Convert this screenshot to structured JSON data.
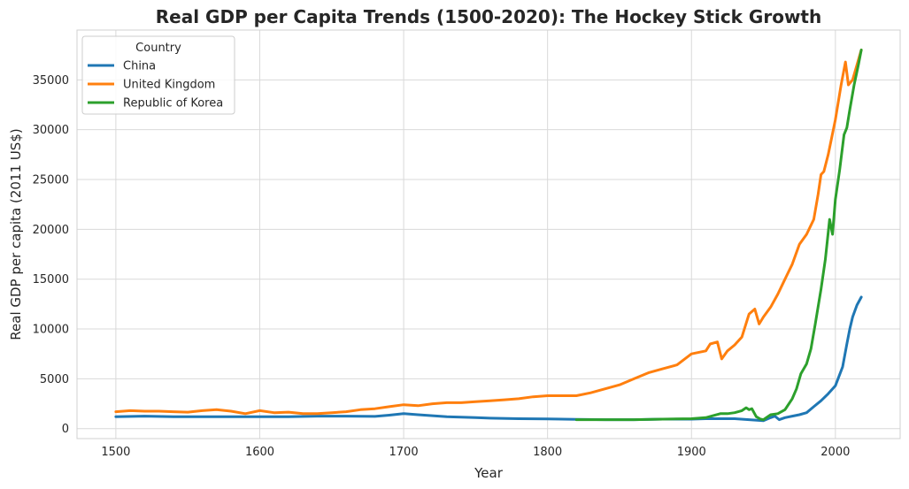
{
  "chart_data": {
    "type": "line",
    "title": "Real GDP per Capita Trends (1500-2020): The Hockey Stick Growth",
    "xlabel": "Year",
    "ylabel": "Real GDP per capita (2011 US$)",
    "xlim": [
      1473,
      2045
    ],
    "ylim": [
      -1000,
      40000
    ],
    "xticks": [
      1500,
      1600,
      1700,
      1800,
      1900,
      2000
    ],
    "yticks": [
      0,
      5000,
      10000,
      15000,
      20000,
      25000,
      30000,
      35000
    ],
    "grid": true,
    "legend": {
      "title": "Country",
      "placement": "top-left"
    },
    "series": [
      {
        "name": "China",
        "color": "#1f77b4",
        "points": [
          [
            1500,
            1200
          ],
          [
            1520,
            1250
          ],
          [
            1540,
            1200
          ],
          [
            1560,
            1200
          ],
          [
            1580,
            1200
          ],
          [
            1600,
            1200
          ],
          [
            1620,
            1200
          ],
          [
            1640,
            1250
          ],
          [
            1660,
            1250
          ],
          [
            1680,
            1230
          ],
          [
            1690,
            1350
          ],
          [
            1700,
            1500
          ],
          [
            1710,
            1400
          ],
          [
            1720,
            1300
          ],
          [
            1730,
            1200
          ],
          [
            1740,
            1150
          ],
          [
            1750,
            1100
          ],
          [
            1760,
            1050
          ],
          [
            1780,
            1000
          ],
          [
            1800,
            980
          ],
          [
            1820,
            930
          ],
          [
            1840,
            900
          ],
          [
            1860,
            900
          ],
          [
            1880,
            950
          ],
          [
            1900,
            950
          ],
          [
            1910,
            1000
          ],
          [
            1920,
            1000
          ],
          [
            1930,
            1000
          ],
          [
            1940,
            900
          ],
          [
            1950,
            800
          ],
          [
            1955,
            1100
          ],
          [
            1958,
            1250
          ],
          [
            1961,
            900
          ],
          [
            1965,
            1100
          ],
          [
            1970,
            1250
          ],
          [
            1975,
            1400
          ],
          [
            1980,
            1600
          ],
          [
            1985,
            2200
          ],
          [
            1990,
            2800
          ],
          [
            1995,
            3500
          ],
          [
            2000,
            4300
          ],
          [
            2005,
            6200
          ],
          [
            2008,
            8500
          ],
          [
            2010,
            10000
          ],
          [
            2012,
            11200
          ],
          [
            2015,
            12400
          ],
          [
            2018,
            13200
          ]
        ]
      },
      {
        "name": "United Kingdom",
        "color": "#ff7f0e",
        "points": [
          [
            1500,
            1700
          ],
          [
            1510,
            1800
          ],
          [
            1520,
            1750
          ],
          [
            1530,
            1750
          ],
          [
            1540,
            1700
          ],
          [
            1550,
            1650
          ],
          [
            1560,
            1800
          ],
          [
            1570,
            1900
          ],
          [
            1580,
            1750
          ],
          [
            1590,
            1500
          ],
          [
            1600,
            1800
          ],
          [
            1610,
            1600
          ],
          [
            1620,
            1650
          ],
          [
            1630,
            1500
          ],
          [
            1640,
            1500
          ],
          [
            1650,
            1600
          ],
          [
            1660,
            1700
          ],
          [
            1670,
            1900
          ],
          [
            1680,
            2000
          ],
          [
            1690,
            2200
          ],
          [
            1700,
            2400
          ],
          [
            1710,
            2300
          ],
          [
            1720,
            2500
          ],
          [
            1730,
            2600
          ],
          [
            1740,
            2600
          ],
          [
            1750,
            2700
          ],
          [
            1760,
            2800
          ],
          [
            1770,
            2900
          ],
          [
            1780,
            3000
          ],
          [
            1790,
            3200
          ],
          [
            1800,
            3300
          ],
          [
            1810,
            3300
          ],
          [
            1820,
            3300
          ],
          [
            1830,
            3600
          ],
          [
            1840,
            4000
          ],
          [
            1850,
            4400
          ],
          [
            1860,
            5000
          ],
          [
            1870,
            5600
          ],
          [
            1880,
            6000
          ],
          [
            1890,
            6400
          ],
          [
            1900,
            7500
          ],
          [
            1910,
            7800
          ],
          [
            1913,
            8500
          ],
          [
            1918,
            8700
          ],
          [
            1921,
            7000
          ],
          [
            1925,
            7800
          ],
          [
            1930,
            8400
          ],
          [
            1935,
            9200
          ],
          [
            1940,
            11500
          ],
          [
            1944,
            12000
          ],
          [
            1947,
            10500
          ],
          [
            1950,
            11200
          ],
          [
            1955,
            12200
          ],
          [
            1960,
            13500
          ],
          [
            1965,
            15000
          ],
          [
            1970,
            16500
          ],
          [
            1975,
            18500
          ],
          [
            1980,
            19500
          ],
          [
            1985,
            21000
          ],
          [
            1988,
            23500
          ],
          [
            1990,
            25500
          ],
          [
            1992,
            25800
          ],
          [
            1995,
            27500
          ],
          [
            2000,
            31000
          ],
          [
            2004,
            34500
          ],
          [
            2007,
            36800
          ],
          [
            2009,
            34500
          ],
          [
            2012,
            35000
          ],
          [
            2015,
            36500
          ],
          [
            2018,
            38000
          ]
        ]
      },
      {
        "name": "Republic of Korea",
        "color": "#2ca02c",
        "points": [
          [
            1820,
            900
          ],
          [
            1840,
            900
          ],
          [
            1860,
            900
          ],
          [
            1880,
            950
          ],
          [
            1900,
            1000
          ],
          [
            1910,
            1100
          ],
          [
            1915,
            1300
          ],
          [
            1920,
            1500
          ],
          [
            1925,
            1500
          ],
          [
            1930,
            1600
          ],
          [
            1935,
            1800
          ],
          [
            1938,
            2100
          ],
          [
            1940,
            1900
          ],
          [
            1942,
            2000
          ],
          [
            1945,
            1200
          ],
          [
            1948,
            950
          ],
          [
            1950,
            900
          ],
          [
            1953,
            1200
          ],
          [
            1955,
            1400
          ],
          [
            1960,
            1500
          ],
          [
            1965,
            1900
          ],
          [
            1970,
            3000
          ],
          [
            1973,
            4000
          ],
          [
            1976,
            5500
          ],
          [
            1980,
            6500
          ],
          [
            1983,
            8000
          ],
          [
            1986,
            10500
          ],
          [
            1990,
            14000
          ],
          [
            1993,
            17000
          ],
          [
            1996,
            21000
          ],
          [
            1998,
            19500
          ],
          [
            2000,
            23000
          ],
          [
            2003,
            26000
          ],
          [
            2006,
            29500
          ],
          [
            2008,
            30200
          ],
          [
            2010,
            32000
          ],
          [
            2013,
            34500
          ],
          [
            2016,
            36500
          ],
          [
            2018,
            38000
          ]
        ]
      }
    ]
  }
}
